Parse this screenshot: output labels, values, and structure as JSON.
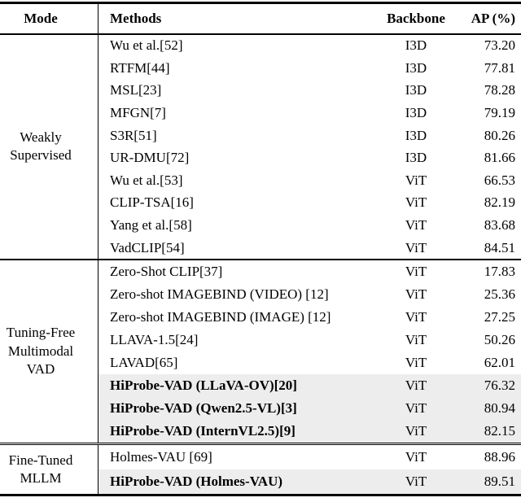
{
  "table": {
    "headers": {
      "mode": "Mode",
      "methods": "Methods",
      "backbone": "Backbone",
      "ap": "AP (%)"
    },
    "sections": [
      {
        "mode_lines": [
          "Weakly",
          "Supervised"
        ],
        "rows": [
          {
            "method": "Wu et al.[52]",
            "backbone": "I3D",
            "ap": "73.20",
            "highlight": false,
            "bold": false
          },
          {
            "method": "RTFM[44]",
            "backbone": "I3D",
            "ap": "77.81",
            "highlight": false,
            "bold": false
          },
          {
            "method": "MSL[23]",
            "backbone": "I3D",
            "ap": "78.28",
            "highlight": false,
            "bold": false
          },
          {
            "method": "MFGN[7]",
            "backbone": "I3D",
            "ap": "79.19",
            "highlight": false,
            "bold": false
          },
          {
            "method": "S3R[51]",
            "backbone": "I3D",
            "ap": "80.26",
            "highlight": false,
            "bold": false
          },
          {
            "method": "UR-DMU[72]",
            "backbone": "I3D",
            "ap": "81.66",
            "highlight": false,
            "bold": false
          },
          {
            "method": "Wu et al.[53]",
            "backbone": "ViT",
            "ap": "66.53",
            "highlight": false,
            "bold": false
          },
          {
            "method": "CLIP-TSA[16]",
            "backbone": "ViT",
            "ap": "82.19",
            "highlight": false,
            "bold": false
          },
          {
            "method": "Yang et al.[58]",
            "backbone": "ViT",
            "ap": "83.68",
            "highlight": false,
            "bold": false
          },
          {
            "method": "VadCLIP[54]",
            "backbone": "ViT",
            "ap": "84.51",
            "highlight": false,
            "bold": false
          }
        ]
      },
      {
        "mode_lines": [
          "Tuning-Free",
          "Multimodal",
          "VAD"
        ],
        "rows": [
          {
            "method": "Zero-Shot CLIP[37]",
            "backbone": "ViT",
            "ap": "17.83",
            "highlight": false,
            "bold": false
          },
          {
            "method": "Zero-shot IMAGEBIND (VIDEO) [12]",
            "backbone": "ViT",
            "ap": "25.36",
            "highlight": false,
            "bold": false
          },
          {
            "method": "Zero-shot IMAGEBIND (IMAGE) [12]",
            "backbone": "ViT",
            "ap": "27.25",
            "highlight": false,
            "bold": false
          },
          {
            "method": "LLAVA-1.5[24]",
            "backbone": "ViT",
            "ap": "50.26",
            "highlight": false,
            "bold": false
          },
          {
            "method": "LAVAD[65]",
            "backbone": "ViT",
            "ap": "62.01",
            "highlight": false,
            "bold": false
          },
          {
            "method": "HiProbe-VAD (LLaVA-OV)[20]",
            "backbone": "ViT",
            "ap": "76.32",
            "highlight": true,
            "bold": true
          },
          {
            "method": "HiProbe-VAD (Qwen2.5-VL)[3]",
            "backbone": "ViT",
            "ap": "80.94",
            "highlight": true,
            "bold": true
          },
          {
            "method": "HiProbe-VAD (InternVL2.5)[9]",
            "backbone": "ViT",
            "ap": "82.15",
            "highlight": true,
            "bold": true
          }
        ]
      },
      {
        "mode_lines": [
          "Fine-Tuned",
          "MLLM"
        ],
        "rows": [
          {
            "method": "Holmes-VAU [69]",
            "backbone": "ViT",
            "ap": "88.96",
            "highlight": false,
            "bold": false
          },
          {
            "method": "HiProbe-VAD (Holmes-VAU)",
            "backbone": "ViT",
            "ap": "89.51",
            "highlight": true,
            "bold": true
          }
        ]
      }
    ]
  },
  "colors": {
    "row_highlight": "#ededed",
    "rule": "#000000",
    "text": "#000000"
  }
}
